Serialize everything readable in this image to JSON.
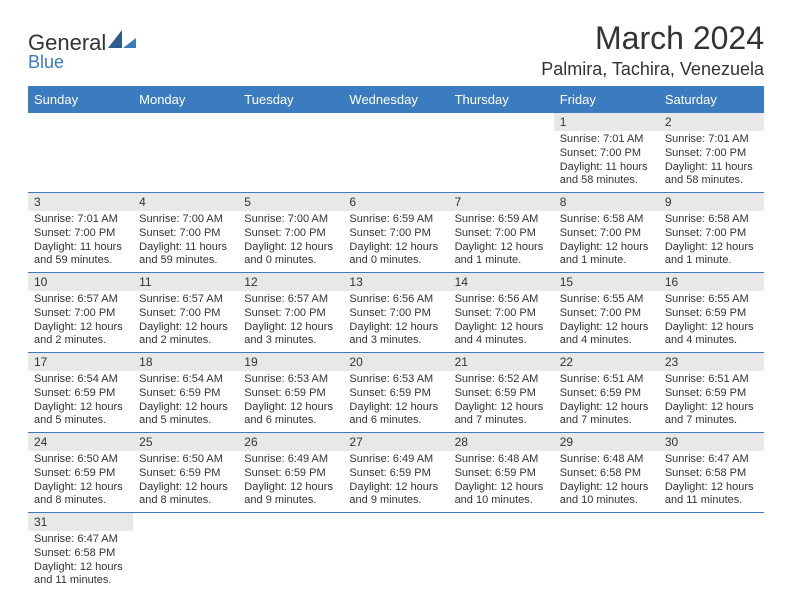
{
  "logo": {
    "general": "General",
    "blue": "Blue"
  },
  "title": "March 2024",
  "location": "Palmira, Tachira, Venezuela",
  "colors": {
    "header_bg": "#3b7bbf",
    "header_fg": "#ffffff",
    "daynum_bg": "#e8e8e8",
    "text": "#333333",
    "rule": "#3b7bbf",
    "page_bg": "#ffffff"
  },
  "weekdays": [
    "Sunday",
    "Monday",
    "Tuesday",
    "Wednesday",
    "Thursday",
    "Friday",
    "Saturday"
  ],
  "weeks": [
    [
      null,
      null,
      null,
      null,
      null,
      {
        "n": "1",
        "sunrise": "Sunrise: 7:01 AM",
        "sunset": "Sunset: 7:00 PM",
        "daylight": "Daylight: 11 hours and 58 minutes."
      },
      {
        "n": "2",
        "sunrise": "Sunrise: 7:01 AM",
        "sunset": "Sunset: 7:00 PM",
        "daylight": "Daylight: 11 hours and 58 minutes."
      }
    ],
    [
      {
        "n": "3",
        "sunrise": "Sunrise: 7:01 AM",
        "sunset": "Sunset: 7:00 PM",
        "daylight": "Daylight: 11 hours and 59 minutes."
      },
      {
        "n": "4",
        "sunrise": "Sunrise: 7:00 AM",
        "sunset": "Sunset: 7:00 PM",
        "daylight": "Daylight: 11 hours and 59 minutes."
      },
      {
        "n": "5",
        "sunrise": "Sunrise: 7:00 AM",
        "sunset": "Sunset: 7:00 PM",
        "daylight": "Daylight: 12 hours and 0 minutes."
      },
      {
        "n": "6",
        "sunrise": "Sunrise: 6:59 AM",
        "sunset": "Sunset: 7:00 PM",
        "daylight": "Daylight: 12 hours and 0 minutes."
      },
      {
        "n": "7",
        "sunrise": "Sunrise: 6:59 AM",
        "sunset": "Sunset: 7:00 PM",
        "daylight": "Daylight: 12 hours and 1 minute."
      },
      {
        "n": "8",
        "sunrise": "Sunrise: 6:58 AM",
        "sunset": "Sunset: 7:00 PM",
        "daylight": "Daylight: 12 hours and 1 minute."
      },
      {
        "n": "9",
        "sunrise": "Sunrise: 6:58 AM",
        "sunset": "Sunset: 7:00 PM",
        "daylight": "Daylight: 12 hours and 1 minute."
      }
    ],
    [
      {
        "n": "10",
        "sunrise": "Sunrise: 6:57 AM",
        "sunset": "Sunset: 7:00 PM",
        "daylight": "Daylight: 12 hours and 2 minutes."
      },
      {
        "n": "11",
        "sunrise": "Sunrise: 6:57 AM",
        "sunset": "Sunset: 7:00 PM",
        "daylight": "Daylight: 12 hours and 2 minutes."
      },
      {
        "n": "12",
        "sunrise": "Sunrise: 6:57 AM",
        "sunset": "Sunset: 7:00 PM",
        "daylight": "Daylight: 12 hours and 3 minutes."
      },
      {
        "n": "13",
        "sunrise": "Sunrise: 6:56 AM",
        "sunset": "Sunset: 7:00 PM",
        "daylight": "Daylight: 12 hours and 3 minutes."
      },
      {
        "n": "14",
        "sunrise": "Sunrise: 6:56 AM",
        "sunset": "Sunset: 7:00 PM",
        "daylight": "Daylight: 12 hours and 4 minutes."
      },
      {
        "n": "15",
        "sunrise": "Sunrise: 6:55 AM",
        "sunset": "Sunset: 7:00 PM",
        "daylight": "Daylight: 12 hours and 4 minutes."
      },
      {
        "n": "16",
        "sunrise": "Sunrise: 6:55 AM",
        "sunset": "Sunset: 6:59 PM",
        "daylight": "Daylight: 12 hours and 4 minutes."
      }
    ],
    [
      {
        "n": "17",
        "sunrise": "Sunrise: 6:54 AM",
        "sunset": "Sunset: 6:59 PM",
        "daylight": "Daylight: 12 hours and 5 minutes."
      },
      {
        "n": "18",
        "sunrise": "Sunrise: 6:54 AM",
        "sunset": "Sunset: 6:59 PM",
        "daylight": "Daylight: 12 hours and 5 minutes."
      },
      {
        "n": "19",
        "sunrise": "Sunrise: 6:53 AM",
        "sunset": "Sunset: 6:59 PM",
        "daylight": "Daylight: 12 hours and 6 minutes."
      },
      {
        "n": "20",
        "sunrise": "Sunrise: 6:53 AM",
        "sunset": "Sunset: 6:59 PM",
        "daylight": "Daylight: 12 hours and 6 minutes."
      },
      {
        "n": "21",
        "sunrise": "Sunrise: 6:52 AM",
        "sunset": "Sunset: 6:59 PM",
        "daylight": "Daylight: 12 hours and 7 minutes."
      },
      {
        "n": "22",
        "sunrise": "Sunrise: 6:51 AM",
        "sunset": "Sunset: 6:59 PM",
        "daylight": "Daylight: 12 hours and 7 minutes."
      },
      {
        "n": "23",
        "sunrise": "Sunrise: 6:51 AM",
        "sunset": "Sunset: 6:59 PM",
        "daylight": "Daylight: 12 hours and 7 minutes."
      }
    ],
    [
      {
        "n": "24",
        "sunrise": "Sunrise: 6:50 AM",
        "sunset": "Sunset: 6:59 PM",
        "daylight": "Daylight: 12 hours and 8 minutes."
      },
      {
        "n": "25",
        "sunrise": "Sunrise: 6:50 AM",
        "sunset": "Sunset: 6:59 PM",
        "daylight": "Daylight: 12 hours and 8 minutes."
      },
      {
        "n": "26",
        "sunrise": "Sunrise: 6:49 AM",
        "sunset": "Sunset: 6:59 PM",
        "daylight": "Daylight: 12 hours and 9 minutes."
      },
      {
        "n": "27",
        "sunrise": "Sunrise: 6:49 AM",
        "sunset": "Sunset: 6:59 PM",
        "daylight": "Daylight: 12 hours and 9 minutes."
      },
      {
        "n": "28",
        "sunrise": "Sunrise: 6:48 AM",
        "sunset": "Sunset: 6:59 PM",
        "daylight": "Daylight: 12 hours and 10 minutes."
      },
      {
        "n": "29",
        "sunrise": "Sunrise: 6:48 AM",
        "sunset": "Sunset: 6:58 PM",
        "daylight": "Daylight: 12 hours and 10 minutes."
      },
      {
        "n": "30",
        "sunrise": "Sunrise: 6:47 AM",
        "sunset": "Sunset: 6:58 PM",
        "daylight": "Daylight: 12 hours and 11 minutes."
      }
    ],
    [
      {
        "n": "31",
        "sunrise": "Sunrise: 6:47 AM",
        "sunset": "Sunset: 6:58 PM",
        "daylight": "Daylight: 12 hours and 11 minutes."
      },
      null,
      null,
      null,
      null,
      null,
      null
    ]
  ]
}
